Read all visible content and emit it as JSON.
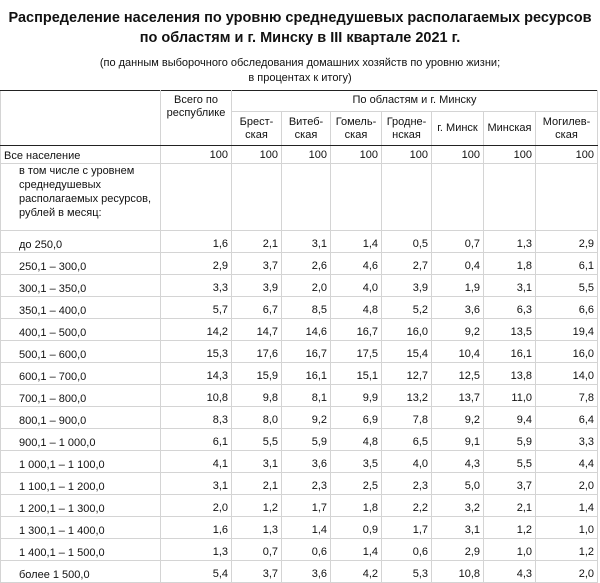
{
  "title_line1": "Распределение населения по уровню среднедушевых располагаемых ресурсов",
  "title_line2": "по областям и г. Минску в III квартале 2021 г.",
  "subtitle_line1": "(по данным выборочного обследования домашних хозяйств по уровню жизни;",
  "subtitle_line2": "в процентах к итогу)",
  "header": {
    "total": "Всего по республике",
    "regions_group": "По областям и г. Минску",
    "regions": [
      "Брест-ская",
      "Витеб-ская",
      "Гомель-ская",
      "Гродне-нская",
      "г. Минск",
      "Минская",
      "Могилев-ская"
    ]
  },
  "all_population": {
    "label": "Все население",
    "values": [
      "100",
      "100",
      "100",
      "100",
      "100",
      "100",
      "100",
      "100"
    ]
  },
  "sub_label": "в том числе с уровнем среднедушевых располагаемых ресурсов, рублей в месяц:",
  "rows": [
    {
      "label": "до 250,0",
      "values": [
        "1,6",
        "2,1",
        "3,1",
        "1,4",
        "0,5",
        "0,7",
        "1,3",
        "2,9"
      ]
    },
    {
      "label": "250,1 – 300,0",
      "values": [
        "2,9",
        "3,7",
        "2,6",
        "4,6",
        "2,7",
        "0,4",
        "1,8",
        "6,1"
      ]
    },
    {
      "label": "300,1 – 350,0",
      "values": [
        "3,3",
        "3,9",
        "2,0",
        "4,0",
        "3,9",
        "1,9",
        "3,1",
        "5,5"
      ]
    },
    {
      "label": "350,1 – 400,0",
      "values": [
        "5,7",
        "6,7",
        "8,5",
        "4,8",
        "5,2",
        "3,6",
        "6,3",
        "6,6"
      ]
    },
    {
      "label": "400,1 – 500,0",
      "values": [
        "14,2",
        "14,7",
        "14,6",
        "16,7",
        "16,0",
        "9,2",
        "13,5",
        "19,4"
      ]
    },
    {
      "label": "500,1 – 600,0",
      "values": [
        "15,3",
        "17,6",
        "16,7",
        "17,5",
        "15,4",
        "10,4",
        "16,1",
        "16,0"
      ]
    },
    {
      "label": "600,1 – 700,0",
      "values": [
        "14,3",
        "15,9",
        "16,1",
        "15,1",
        "12,7",
        "12,5",
        "13,8",
        "14,0"
      ]
    },
    {
      "label": "700,1 – 800,0",
      "values": [
        "10,8",
        "9,8",
        "8,1",
        "9,9",
        "13,2",
        "13,7",
        "11,0",
        "7,8"
      ]
    },
    {
      "label": "800,1 – 900,0",
      "values": [
        "8,3",
        "8,0",
        "9,2",
        "6,9",
        "7,8",
        "9,2",
        "9,4",
        "6,4"
      ]
    },
    {
      "label": "900,1 – 1 000,0",
      "values": [
        "6,1",
        "5,5",
        "5,9",
        "4,8",
        "6,5",
        "9,1",
        "5,9",
        "3,3"
      ]
    },
    {
      "label": "1 000,1 – 1 100,0",
      "values": [
        "4,1",
        "3,1",
        "3,6",
        "3,5",
        "4,0",
        "4,3",
        "5,5",
        "4,4"
      ]
    },
    {
      "label": "1 100,1 – 1 200,0",
      "values": [
        "3,1",
        "2,1",
        "2,3",
        "2,5",
        "2,3",
        "5,0",
        "3,7",
        "2,0"
      ]
    },
    {
      "label": "1 200,1 – 1 300,0",
      "values": [
        "2,0",
        "1,2",
        "1,7",
        "1,8",
        "2,2",
        "3,2",
        "2,1",
        "1,4"
      ]
    },
    {
      "label": "1 300,1 – 1 400,0",
      "values": [
        "1,6",
        "1,3",
        "1,4",
        "0,9",
        "1,7",
        "3,1",
        "1,2",
        "1,0"
      ]
    },
    {
      "label": "1 400,1 – 1 500,0",
      "values": [
        "1,3",
        "0,7",
        "0,6",
        "1,4",
        "0,6",
        "2,9",
        "1,0",
        "1,2"
      ]
    },
    {
      "label": "более 1 500,0",
      "values": [
        "5,4",
        "3,7",
        "3,6",
        "4,2",
        "5,3",
        "10,8",
        "4,3",
        "2,0"
      ]
    }
  ]
}
